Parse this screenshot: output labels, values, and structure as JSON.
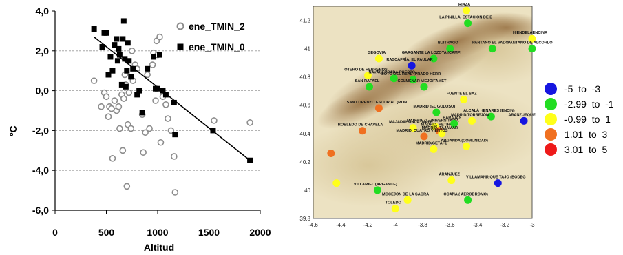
{
  "chart_data": [
    {
      "type": "scatter",
      "xlabel": "Altitud",
      "ylabel": "ºC",
      "xlim": [
        0,
        2000
      ],
      "ylim": [
        -6,
        4
      ],
      "x_ticks": [
        "0",
        "500",
        "1000",
        "1500",
        "2000"
      ],
      "y_ticks": [
        "4,0",
        "2,0",
        "0,0",
        "-2,0",
        "-4,0",
        "-6,0"
      ],
      "grid": "horizontal dashed",
      "legend": "top-right",
      "series": [
        {
          "name": "ene_TMIN_2",
          "marker": "open-circle",
          "color": "#8c8c8c",
          "points": [
            [
              380,
              0.5
            ],
            [
              450,
              -0.8
            ],
            [
              480,
              -0.1
            ],
            [
              500,
              -0.3
            ],
            [
              520,
              -1.3
            ],
            [
              530,
              -0.8
            ],
            [
              550,
              -0.9
            ],
            [
              560,
              -3.4
            ],
            [
              580,
              -0.5
            ],
            [
              600,
              -1.0
            ],
            [
              620,
              -0.8
            ],
            [
              630,
              -1.9
            ],
            [
              650,
              -0.2
            ],
            [
              660,
              -3.0
            ],
            [
              670,
              -0.4
            ],
            [
              680,
              0.8
            ],
            [
              690,
              0.3
            ],
            [
              700,
              -4.8
            ],
            [
              710,
              -1.7
            ],
            [
              720,
              -0.1
            ],
            [
              740,
              -1.9
            ],
            [
              750,
              2.0
            ],
            [
              760,
              0.5
            ],
            [
              780,
              1.3
            ],
            [
              800,
              1.1
            ],
            [
              850,
              -1.2
            ],
            [
              860,
              -3.1
            ],
            [
              880,
              -2.1
            ],
            [
              900,
              0.8
            ],
            [
              920,
              -1.9
            ],
            [
              950,
              1.3
            ],
            [
              960,
              1.9
            ],
            [
              980,
              -0.5
            ],
            [
              990,
              2.5
            ],
            [
              1000,
              1.8
            ],
            [
              1020,
              2.7
            ],
            [
              1030,
              -2.6
            ],
            [
              1050,
              -0.3
            ],
            [
              1080,
              -0.7
            ],
            [
              1100,
              -1.4
            ],
            [
              1130,
              -2.0
            ],
            [
              1160,
              -3.3
            ],
            [
              1170,
              -5.1
            ],
            [
              1550,
              -1.5
            ],
            [
              1900,
              -1.6
            ]
          ]
        },
        {
          "name": "ene_TMIN_0",
          "marker": "filled-square",
          "color": "#000000",
          "points": [
            [
              380,
              3.1
            ],
            [
              460,
              2.2
            ],
            [
              480,
              2.9
            ],
            [
              500,
              2.9
            ],
            [
              520,
              0.8
            ],
            [
              540,
              1.7
            ],
            [
              560,
              1.0
            ],
            [
              580,
              2.3
            ],
            [
              600,
              2.6
            ],
            [
              610,
              1.5
            ],
            [
              620,
              2.1
            ],
            [
              630,
              1.8
            ],
            [
              650,
              0.3
            ],
            [
              660,
              2.6
            ],
            [
              670,
              3.5
            ],
            [
              680,
              1.6
            ],
            [
              690,
              0.2
            ],
            [
              700,
              1.0
            ],
            [
              710,
              2.4
            ],
            [
              720,
              1.5
            ],
            [
              740,
              0.7
            ],
            [
              760,
              1.1
            ],
            [
              800,
              -0.2
            ],
            [
              820,
              0.0
            ],
            [
              850,
              -1.1
            ],
            [
              900,
              1.1
            ],
            [
              960,
              1.7
            ],
            [
              980,
              0.1
            ],
            [
              1000,
              0.1
            ],
            [
              1020,
              1.8
            ],
            [
              1050,
              0.0
            ],
            [
              1080,
              -0.2
            ],
            [
              1160,
              -0.6
            ],
            [
              1170,
              -2.2
            ],
            [
              1540,
              -2.0
            ],
            [
              1900,
              -3.5
            ]
          ]
        },
        {
          "name": "",
          "type": "trendline",
          "points": [
            [
              380,
              2.7
            ],
            [
              1900,
              -3.5
            ]
          ]
        }
      ]
    },
    {
      "type": "scatter",
      "subtype": "map",
      "background": "terrain relief",
      "xlim": [
        -4.6,
        -3.0
      ],
      "ylim": [
        39.8,
        41.3
      ],
      "x_ticks": [
        "-4.6",
        "-4.4",
        "-4.2",
        "-4",
        "-3.8",
        "-3.6",
        "-3.4",
        "-3.2",
        "-3"
      ],
      "y_ticks": [
        "41.2",
        "41",
        "40.8",
        "40.6",
        "40.4",
        "40.2",
        "40",
        "39.8"
      ],
      "legend": "right",
      "classes": [
        {
          "label": "-5  to  -3",
          "color": "#1515e0"
        },
        {
          "label": "-2.99  to  -1",
          "color": "#22dd22"
        },
        {
          "label": "-0.99  to  1",
          "color": "#ffff1a"
        },
        {
          "label": "1.01  to  3",
          "color": "#f07020"
        },
        {
          "label": "3.01  to  5",
          "color": "#ee1a1a"
        }
      ],
      "stations": [
        {
          "name": "RIAZA",
          "lon": -3.48,
          "lat": 41.27,
          "class": 2
        },
        {
          "name": "LA PINILLA, ESTACIÓN DE E",
          "lon": -3.47,
          "lat": 41.18,
          "class": 1
        },
        {
          "name": "HIENDELAENCINA",
          "lon": -3.0,
          "lat": 41.07,
          "class": 2
        },
        {
          "name": "BUITRAGO",
          "lon": -3.6,
          "lat": 41.0,
          "class": 1
        },
        {
          "name": "PANTANO EL VADO",
          "lon": -3.29,
          "lat": 41.0,
          "class": 1
        },
        {
          "name": "PANTANO DE ALCORLO",
          "lon": -3.0,
          "lat": 41.0,
          "class": 1
        },
        {
          "name": "SEGOVIA",
          "lon": -4.12,
          "lat": 40.93,
          "class": 2
        },
        {
          "name": "GARGANTE LA LOZOYA (CAMPI",
          "lon": -3.72,
          "lat": 40.93,
          "class": 1
        },
        {
          "name": "RASCAFRÍA, EL PAULAR",
          "lon": -3.88,
          "lat": 40.88,
          "class": 0
        },
        {
          "name": "OTERO DE HERREROS",
          "lon": -4.2,
          "lat": 40.81,
          "class": 2
        },
        {
          "name": "NAVACERRADA PUERTO",
          "lon": -4.01,
          "lat": 40.79,
          "class": 1
        },
        {
          "name": "SAN RAFAEL",
          "lon": -4.19,
          "lat": 40.73,
          "class": 1
        },
        {
          "name": "SOTO DEL REAL (PRADO HERR",
          "lon": -3.87,
          "lat": 40.78,
          "class": 1
        },
        {
          "name": "COLMENAR VIEJO/FAMET",
          "lon": -3.79,
          "lat": 40.73,
          "class": 1
        },
        {
          "name": "FUENTE EL SAZ",
          "lon": -3.5,
          "lat": 40.64,
          "class": 2
        },
        {
          "name": "SAN LORENZO ESCORIAL (MON",
          "lon": -4.12,
          "lat": 40.58,
          "class": 3
        },
        {
          "name": "MADRID (EL GOLOSO)",
          "lon": -3.7,
          "lat": 40.55,
          "class": 1
        },
        {
          "name": "ALCALÁ HENARES (ENCIN)",
          "lon": -3.3,
          "lat": 40.52,
          "class": 1
        },
        {
          "name": "ARANZUEQUE",
          "lon": -3.06,
          "lat": 40.49,
          "class": 0
        },
        {
          "name": "MADRID/TORREJÓN",
          "lon": -3.44,
          "lat": 40.49,
          "class": 2
        },
        {
          "name": "MADRID, C. UNIVERSITARIA",
          "lon": -3.71,
          "lat": 40.45,
          "class": 2
        },
        {
          "name": "MAJADAHONDA (MAFR",
          "lon": -3.87,
          "lat": 40.44,
          "class": 2
        },
        {
          "name": "MADRID, RETIRO",
          "lon": -3.68,
          "lat": 40.42,
          "class": 3
        },
        {
          "name": "BARAJAS",
          "lon": -3.57,
          "lat": 40.47,
          "class": 1
        },
        {
          "name": "MADRID, TAJAMAR",
          "lon": -3.66,
          "lat": 40.4,
          "class": 2
        },
        {
          "name": "MADRID, CUATRO VIENTOS",
          "lon": -3.79,
          "lat": 40.38,
          "class": 3
        },
        {
          "name": "ROBLEDO DE CHAVELA",
          "lon": -4.24,
          "lat": 40.42,
          "class": 3
        },
        {
          "name": "ARGANDA (COMUNIDAD)",
          "lon": -3.48,
          "lat": 40.31,
          "class": 2
        },
        {
          "name": "MADRID/GETAFE",
          "lon": -3.72,
          "lat": 40.29,
          "class": 2
        },
        {
          "name": "ARANJUEZ",
          "lon": -3.59,
          "lat": 40.07,
          "class": 2
        },
        {
          "name": "VILLAMANRIQUE TAJO (BODEG",
          "lon": -3.25,
          "lat": 40.05,
          "class": 0
        },
        {
          "name": "VILLAMIEL (ARGANCE)",
          "lon": -4.13,
          "lat": 40.0,
          "class": 1
        },
        {
          "name": "MOCEJÓN DE LA SAGRA",
          "lon": -3.91,
          "lat": 39.93,
          "class": 2
        },
        {
          "name": "OCAÑA ( AERODROMO)",
          "lon": -3.47,
          "lat": 39.93,
          "class": 1
        },
        {
          "name": "TOLEDO",
          "lon": -4.0,
          "lat": 39.87,
          "class": 2
        },
        {
          "name": "",
          "lon": -4.47,
          "lat": 40.26,
          "class": 3
        },
        {
          "name": "",
          "lon": -4.43,
          "lat": 40.05,
          "class": 2
        }
      ]
    }
  ]
}
